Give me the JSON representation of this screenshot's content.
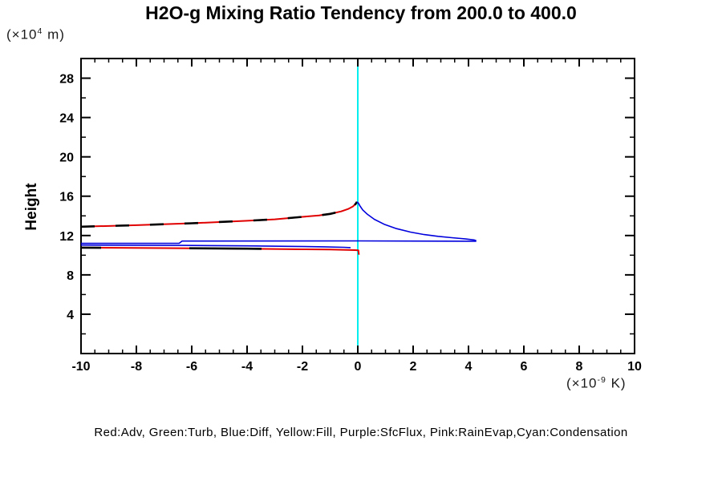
{
  "title": "H2O-g Mixing Ratio Tendency from 200.0 to 400.0",
  "y_axis_label": "Height",
  "y_unit": {
    "prefix": "(×10",
    "exp": "4",
    "suffix": " m)"
  },
  "x_unit": {
    "prefix": "(×10",
    "exp": "-9",
    "suffix": " K)"
  },
  "legend": "Red:Adv, Green:Turb, Blue:Diff, Yellow:Fill, Purple:SfcFlux, Pink:RainEvap,Cyan:Condensation",
  "colors": {
    "red": "#e00000",
    "blue": "#0000dd",
    "cyan": "#00eeee",
    "black": "#000000",
    "frame": "#000000"
  },
  "chart_data": {
    "type": "line",
    "title": "H2O-g Mixing Ratio Tendency from 200.0 to 400.0",
    "xlabel": "(x10^-9 K)",
    "ylabel": "Height (x10^4 m)",
    "xlim": [
      -10,
      10
    ],
    "ylim": [
      0,
      30
    ],
    "grid": false,
    "x_major_ticks": [
      -10,
      -8,
      -6,
      -4,
      -2,
      0,
      2,
      4,
      6,
      8,
      10
    ],
    "x_tick_labels": [
      "-10",
      "-8",
      "-6",
      "-4",
      "-2",
      "0",
      "2",
      "4",
      "6",
      "8",
      "10"
    ],
    "x_minor_step": 0.5,
    "y_major_ticks": [
      4,
      8,
      12,
      16,
      20,
      24,
      28
    ],
    "y_tick_labels": [
      "4",
      "8",
      "12",
      "16",
      "20",
      "24",
      "28"
    ],
    "y_minor_step": 2,
    "zero_line": {
      "x": 0,
      "color": "#00eeee"
    },
    "series": [
      {
        "name": "adv-red-upper",
        "legend_key": "Red:Adv",
        "color": "#e00000",
        "width": 2,
        "points": [
          [
            -10,
            12.9
          ],
          [
            -8,
            13.05
          ],
          [
            -6,
            13.25
          ],
          [
            -4,
            13.5
          ],
          [
            -3,
            13.65
          ],
          [
            -2,
            13.9
          ],
          [
            -1.4,
            14.05
          ],
          [
            -1,
            14.2
          ],
          [
            -0.6,
            14.45
          ],
          [
            -0.35,
            14.7
          ],
          [
            -0.18,
            14.95
          ],
          [
            -0.08,
            15.2
          ],
          [
            -0.03,
            15.42
          ]
        ]
      },
      {
        "name": "total-black-dashed-upper",
        "legend_key": "",
        "color": "#000000",
        "width": 2.6,
        "dash": "17 26",
        "points": [
          [
            -10,
            12.9
          ],
          [
            -8,
            13.05
          ],
          [
            -6,
            13.25
          ],
          [
            -4,
            13.5
          ],
          [
            -3,
            13.65
          ],
          [
            -2,
            13.9
          ],
          [
            -1.4,
            14.05
          ],
          [
            -1,
            14.2
          ],
          [
            -0.6,
            14.45
          ],
          [
            -0.35,
            14.7
          ],
          [
            -0.18,
            14.95
          ],
          [
            -0.08,
            15.2
          ],
          [
            -0.03,
            15.42
          ]
        ]
      },
      {
        "name": "adv-red-lower",
        "legend_key": "Red:Adv",
        "color": "#e00000",
        "width": 2,
        "points": [
          [
            -10,
            10.77
          ],
          [
            -7,
            10.72
          ],
          [
            -4,
            10.66
          ],
          [
            -2,
            10.6
          ],
          [
            -1,
            10.57
          ],
          [
            -0.4,
            10.54
          ],
          [
            -0.1,
            10.52
          ],
          [
            0.02,
            10.5
          ],
          [
            0.04,
            10.05
          ]
        ]
      },
      {
        "name": "total-black-dashed-lower",
        "legend_key": "",
        "color": "#000000",
        "width": 2.6,
        "dash": "90 110",
        "dashoffset": 65,
        "points": [
          [
            -10,
            10.77
          ],
          [
            -7,
            10.72
          ],
          [
            -4,
            10.66
          ],
          [
            -2,
            10.6
          ],
          [
            -1,
            10.57
          ],
          [
            -0.4,
            10.54
          ]
        ]
      },
      {
        "name": "diff-blue-peak",
        "legend_key": "Blue:Diff",
        "color": "#0000dd",
        "width": 1.6,
        "points": [
          [
            -0.03,
            15.42
          ],
          [
            0.02,
            15.3
          ],
          [
            0.08,
            15.0
          ],
          [
            0.18,
            14.6
          ],
          [
            0.35,
            14.15
          ],
          [
            0.6,
            13.65
          ],
          [
            0.95,
            13.15
          ],
          [
            1.4,
            12.7
          ],
          [
            1.9,
            12.35
          ],
          [
            2.4,
            12.1
          ],
          [
            2.9,
            11.92
          ],
          [
            3.4,
            11.78
          ],
          [
            3.9,
            11.65
          ],
          [
            4.2,
            11.55
          ],
          [
            4.28,
            11.48
          ]
        ]
      },
      {
        "name": "diff-blue-return",
        "legend_key": "Blue:Diff",
        "color": "#0000dd",
        "width": 1.6,
        "points": [
          [
            4.28,
            11.42
          ],
          [
            0,
            11.45
          ],
          [
            -6.35,
            11.44
          ],
          [
            -6.45,
            11.22
          ],
          [
            -10,
            11.2
          ]
        ]
      },
      {
        "name": "diff-blue-lower",
        "legend_key": "Blue:Diff",
        "color": "#0000dd",
        "width": 1.6,
        "points": [
          [
            -10,
            11.03
          ],
          [
            -6.4,
            11.0
          ],
          [
            -4,
            10.95
          ],
          [
            -2.5,
            10.9
          ],
          [
            -1.2,
            10.85
          ],
          [
            -0.5,
            10.8
          ],
          [
            -0.26,
            10.77
          ]
        ]
      }
    ]
  }
}
